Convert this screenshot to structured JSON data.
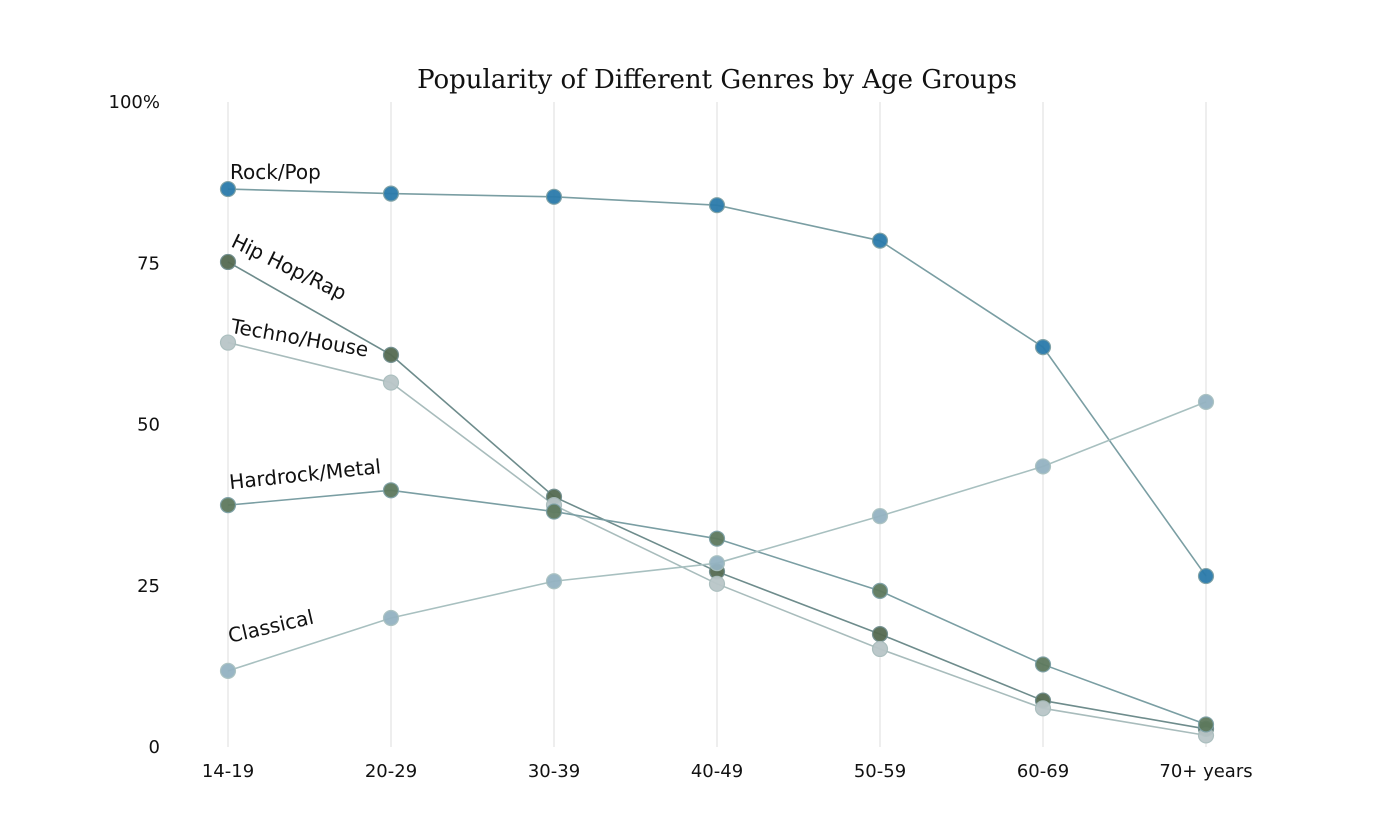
{
  "chart_data": {
    "type": "line",
    "title": "Popularity of Different Genres by Age Groups",
    "xlabel": "",
    "ylabel": "",
    "categories": [
      "14-19",
      "20-29",
      "30-39",
      "40-49",
      "50-59",
      "60-69",
      "70+ years"
    ],
    "ylim": [
      0,
      100
    ],
    "y_ticks": [
      "0",
      "25",
      "50",
      "75",
      "100%"
    ],
    "y_tick_values": [
      0,
      25,
      50,
      75,
      100
    ],
    "grid": "vertical",
    "legend": "inline labels near first point",
    "series": [
      {
        "name": "Rock/Pop",
        "values": [
          86.5,
          85.8,
          85.3,
          84,
          78.5,
          62,
          26.5
        ],
        "color": "#2b7bab",
        "line_color": "#7a9ea3",
        "label_angle": 0
      },
      {
        "name": "Hip Hop/Rap",
        "values": [
          75.2,
          60.8,
          38.8,
          27.2,
          17.5,
          7.2,
          2.8
        ],
        "color": "#556b52",
        "line_color": "#6e8c8c",
        "label_angle": 26
      },
      {
        "name": "Techno/House",
        "values": [
          62.7,
          56.5,
          37.5,
          25.3,
          15.2,
          6,
          1.8
        ],
        "color": "#b9c6c8",
        "line_color": "#a8bcbc",
        "label_angle": 10
      },
      {
        "name": "Hardrock/Metal",
        "values": [
          37.5,
          39.8,
          36.5,
          32.3,
          24.2,
          12.8,
          3.5
        ],
        "color": "#5e7a5e",
        "line_color": "#7a9ea3",
        "label_angle": -6
      },
      {
        "name": "Classical",
        "values": [
          11.8,
          20,
          25.7,
          28.5,
          35.8,
          43.5,
          53.5
        ],
        "color": "#94b3c2",
        "line_color": "#a8c0c0",
        "label_angle": -13
      }
    ]
  }
}
